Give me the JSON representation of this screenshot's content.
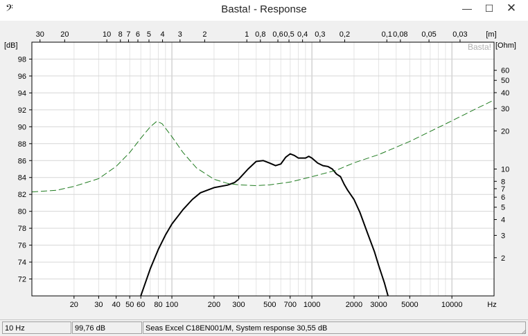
{
  "window": {
    "title": "Basta! - Response",
    "app_icon_glyph": "𝄢",
    "controls": {
      "minimize": "—",
      "maximize": "☐",
      "close": "✕"
    }
  },
  "chart_data": {
    "type": "line",
    "watermark": "Basta!",
    "x_scale": "log",
    "xlim": [
      10,
      20000
    ],
    "x_ticks": [
      {
        "v": 20,
        "label": "20"
      },
      {
        "v": 30,
        "label": "30"
      },
      {
        "v": 40,
        "label": "40"
      },
      {
        "v": 50,
        "label": "50"
      },
      {
        "v": 60,
        "label": "60"
      },
      {
        "v": 80,
        "label": "80"
      },
      {
        "v": 100,
        "label": "100"
      },
      {
        "v": 200,
        "label": "200"
      },
      {
        "v": 300,
        "label": "300"
      },
      {
        "v": 500,
        "label": "500"
      },
      {
        "v": 700,
        "label": "700"
      },
      {
        "v": 1000,
        "label": "1000"
      },
      {
        "v": 2000,
        "label": "2000"
      },
      {
        "v": 3000,
        "label": "3000"
      },
      {
        "v": 5000,
        "label": "5000"
      },
      {
        "v": 10000,
        "label": "10000"
      }
    ],
    "x_unit": "Hz",
    "top_axis_unit": "[m]",
    "top_ticks": [
      {
        "label": "30",
        "m": 30
      },
      {
        "label": "20",
        "m": 20
      },
      {
        "label": "10",
        "m": 10
      },
      {
        "label": "8",
        "m": 8
      },
      {
        "label": "7",
        "m": 7
      },
      {
        "label": "6",
        "m": 6
      },
      {
        "label": "5",
        "m": 5
      },
      {
        "label": "4",
        "m": 4
      },
      {
        "label": "3",
        "m": 3
      },
      {
        "label": "2",
        "m": 2
      },
      {
        "label": "1",
        "m": 1
      },
      {
        "label": "0,8",
        "m": 0.8
      },
      {
        "label": "0,6",
        "m": 0.6
      },
      {
        "label": "0,5",
        "m": 0.5
      },
      {
        "label": "0,4",
        "m": 0.4
      },
      {
        "label": "0,3",
        "m": 0.3
      },
      {
        "label": "0,2",
        "m": 0.2
      },
      {
        "label": "0,1",
        "m": 0.1
      },
      {
        "label": "0,08",
        "m": 0.08
      },
      {
        "label": "0,05",
        "m": 0.05
      },
      {
        "label": "0,03",
        "m": 0.03
      }
    ],
    "y_left_unit": "[dB]",
    "ylim_left": [
      70,
      100
    ],
    "y_left_ticks": [
      72,
      74,
      76,
      78,
      80,
      82,
      84,
      86,
      88,
      90,
      92,
      94,
      96,
      98
    ],
    "y_right_unit": "[Ohm]",
    "y_right_scale": "log",
    "ylim_right": [
      1,
      100
    ],
    "y_right_ticks": [
      2,
      3,
      4,
      5,
      6,
      7,
      8,
      10,
      20,
      30,
      40,
      50,
      60
    ],
    "series": [
      {
        "axis": "left",
        "color": "#000000",
        "style": "solid",
        "points": [
          [
            60,
            70
          ],
          [
            70,
            73.2
          ],
          [
            80,
            75.5
          ],
          [
            90,
            77.2
          ],
          [
            100,
            78.5
          ],
          [
            120,
            80.2
          ],
          [
            140,
            81.4
          ],
          [
            160,
            82.2
          ],
          [
            200,
            82.8
          ],
          [
            250,
            83.1
          ],
          [
            280,
            83.4
          ],
          [
            300,
            83.8
          ],
          [
            350,
            85.0
          ],
          [
            400,
            85.9
          ],
          [
            450,
            86.0
          ],
          [
            500,
            85.7
          ],
          [
            550,
            85.4
          ],
          [
            600,
            85.6
          ],
          [
            650,
            86.4
          ],
          [
            700,
            86.8
          ],
          [
            750,
            86.6
          ],
          [
            800,
            86.3
          ],
          [
            900,
            86.3
          ],
          [
            950,
            86.5
          ],
          [
            1000,
            86.3
          ],
          [
            1100,
            85.7
          ],
          [
            1200,
            85.4
          ],
          [
            1300,
            85.3
          ],
          [
            1400,
            85.0
          ],
          [
            1500,
            84.4
          ],
          [
            1600,
            84.1
          ],
          [
            1700,
            83.2
          ],
          [
            1800,
            82.5
          ],
          [
            2000,
            81.4
          ],
          [
            2200,
            79.9
          ],
          [
            2500,
            77.4
          ],
          [
            2800,
            75.2
          ],
          [
            3000,
            73.6
          ],
          [
            3300,
            71.5
          ],
          [
            3500,
            70
          ]
        ]
      },
      {
        "axis": "right",
        "color": "#1e7a1e",
        "style": "dashed",
        "points": [
          [
            10,
            6.6
          ],
          [
            15,
            6.8
          ],
          [
            20,
            7.3
          ],
          [
            30,
            8.4
          ],
          [
            40,
            10.5
          ],
          [
            50,
            13.5
          ],
          [
            60,
            17.5
          ],
          [
            70,
            21.5
          ],
          [
            78,
            23.8
          ],
          [
            85,
            22.8
          ],
          [
            100,
            18.0
          ],
          [
            120,
            13.5
          ],
          [
            150,
            10.2
          ],
          [
            200,
            8.3
          ],
          [
            250,
            7.7
          ],
          [
            300,
            7.5
          ],
          [
            400,
            7.4
          ],
          [
            500,
            7.5
          ],
          [
            700,
            7.9
          ],
          [
            1000,
            8.7
          ],
          [
            1500,
            9.8
          ],
          [
            2000,
            11.2
          ],
          [
            3000,
            13.0
          ],
          [
            5000,
            16.5
          ],
          [
            7000,
            19.8
          ],
          [
            10000,
            24.0
          ],
          [
            15000,
            30.0
          ],
          [
            20000,
            35.0
          ]
        ]
      }
    ]
  },
  "status": {
    "freq": "10 Hz",
    "level": "99,76 dB",
    "info": "Seas Excel C18EN001/M, System response 30,55 dB"
  }
}
